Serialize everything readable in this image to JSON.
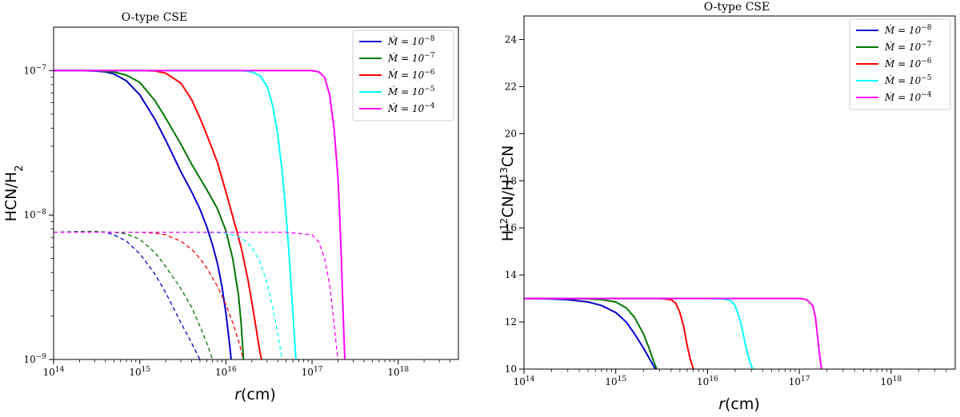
{
  "chart_data": [
    {
      "type": "line",
      "title": "O-type CSE",
      "xlabel": "r(cm)",
      "ylabel": "HCN/H2",
      "xscale": "log",
      "yscale": "log",
      "xlim": [
        100000000000000.0,
        5e+18
      ],
      "ylim": [
        1e-09,
        2e-07
      ],
      "x_ticks": [
        100000000000000.0,
        1000000000000000.0,
        1e+16,
        1e+17,
        1e+18
      ],
      "x_tick_labels": [
        "10^14",
        "10^15",
        "10^16",
        "10^17",
        "10^18"
      ],
      "y_ticks": [
        1e-09,
        1e-08,
        1e-07
      ],
      "y_tick_labels": [
        "10^-9",
        "10^-8",
        "10^-7"
      ],
      "grid": false,
      "legend_position": "top-right",
      "series": [
        {
          "name": "Ṁ = 10^-8",
          "color": "#0000cc",
          "style": "solid",
          "x": [
            100000000000000.0,
            200000000000000.0,
            300000000000000.0,
            400000000000000.0,
            500000000000000.0,
            700000000000000.0,
            1000000000000000.0,
            1500000000000000.0,
            2000000000000000.0,
            3000000000000000.0,
            4000000000000000.0,
            5000000000000000.0,
            6000000000000000.0,
            7000000000000000.0,
            8000000000000000.0,
            9000000000000000.0,
            1e+16,
            1.1e+16,
            1.15e+16
          ],
          "y": [
            1e-07,
            1e-07,
            9.95e-08,
            9.8e-08,
            9.5e-08,
            8.5e-08,
            6.8e-08,
            4.6e-08,
            3.3e-08,
            2e-08,
            1.45e-08,
            1.1e-08,
            8.3e-09,
            6.2e-09,
            4.6e-09,
            3.2e-09,
            2.1e-09,
            1.3e-09,
            1e-09
          ]
        },
        {
          "name": "Ṁ = 10^-7",
          "color": "#007700",
          "style": "solid",
          "x": [
            100000000000000.0,
            300000000000000.0,
            500000000000000.0,
            700000000000000.0,
            1000000000000000.0,
            1500000000000000.0,
            2000000000000000.0,
            3000000000000000.0,
            4000000000000000.0,
            6000000000000000.0,
            8000000000000000.0,
            1e+16,
            1.2e+16,
            1.4e+16,
            1.5e+16,
            1.6e+16
          ],
          "y": [
            1e-07,
            1e-07,
            9.8e-08,
            9.3e-08,
            8.3e-08,
            6.2e-08,
            4.7e-08,
            3.1e-08,
            2.25e-08,
            1.5e-08,
            1.1e-08,
            7.8e-09,
            5e-09,
            2.8e-09,
            1.8e-09,
            1e-09
          ]
        },
        {
          "name": "Ṁ = 10^-6",
          "color": "#ff0000",
          "style": "solid",
          "x": [
            100000000000000.0,
            500000000000000.0,
            1000000000000000.0,
            1500000000000000.0,
            2000000000000000.0,
            3000000000000000.0,
            4000000000000000.0,
            5000000000000000.0,
            6000000000000000.0,
            8000000000000000.0,
            1e+16,
            1.2e+16,
            1.5e+16,
            1.8e+16,
            2e+16,
            2.3e+16,
            2.5e+16,
            2.6e+16
          ],
          "y": [
            1e-07,
            1e-07,
            1e-07,
            9.95e-08,
            9.6e-08,
            8.2e-08,
            6.3e-08,
            4.7e-08,
            3.6e-08,
            2.3e-08,
            1.45e-08,
            9.8e-09,
            6e-09,
            3.6e-09,
            2.5e-09,
            1.5e-09,
            1.1e-09,
            1e-09
          ]
        },
        {
          "name": "Ṁ = 10^-5",
          "color": "#00ffff",
          "style": "solid",
          "x": [
            100000000000000.0,
            1000000000000000.0,
            5000000000000000.0,
            1e+16,
            1.5e+16,
            2e+16,
            2.5e+16,
            3e+16,
            3.5e+16,
            4e+16,
            4.5e+16,
            5e+16,
            5.5e+16,
            6e+16,
            6.5e+16
          ],
          "y": [
            1e-07,
            1e-07,
            1e-07,
            1e-07,
            1e-07,
            9.8e-08,
            9.2e-08,
            7.8e-08,
            5.7e-08,
            3.6e-08,
            2e-08,
            1e-08,
            4.7e-09,
            2.1e-09,
            1e-09
          ]
        },
        {
          "name": "Ṁ = 10^-4",
          "color": "#ff00ff",
          "style": "solid",
          "x": [
            100000000000000.0,
            1000000000000000.0,
            1e+16,
            5e+16,
            1e+17,
            1.2e+17,
            1.4e+17,
            1.6e+17,
            1.8e+17,
            2e+17,
            2.1e+17,
            2.2e+17,
            2.3e+17,
            2.4e+17
          ],
          "y": [
            1e-07,
            1e-07,
            1e-07,
            1e-07,
            1e-07,
            9.8e-08,
            9e-08,
            6.8e-08,
            4e-08,
            1.8e-08,
            9.5e-09,
            4.6e-09,
            2e-09,
            1e-09
          ]
        },
        {
          "color": "#0000cc",
          "style": "dashed",
          "x": [
            100000000000000.0,
            200000000000000.0,
            300000000000000.0,
            400000000000000.0,
            500000000000000.0,
            700000000000000.0,
            1000000000000000.0,
            1500000000000000.0,
            2000000000000000.0,
            3000000000000000.0,
            4000000000000000.0,
            5000000000000000.0
          ],
          "y": [
            7.6e-09,
            7.7e-09,
            7.7e-09,
            7.6e-09,
            7.3e-09,
            6.6e-09,
            5.4e-09,
            3.9e-09,
            2.9e-09,
            1.8e-09,
            1.3e-09,
            1e-09
          ]
        },
        {
          "color": "#007700",
          "style": "dashed",
          "x": [
            100000000000000.0,
            300000000000000.0,
            500000000000000.0,
            700000000000000.0,
            1000000000000000.0,
            1500000000000000.0,
            2000000000000000.0,
            3000000000000000.0,
            4000000000000000.0,
            5000000000000000.0,
            6000000000000000.0,
            7000000000000000.0
          ],
          "y": [
            7.6e-09,
            7.7e-09,
            7.6e-09,
            7.4e-09,
            6.8e-09,
            5.5e-09,
            4.4e-09,
            3.1e-09,
            2.3e-09,
            1.7e-09,
            1.3e-09,
            1e-09
          ]
        },
        {
          "color": "#ff0000",
          "style": "dashed",
          "x": [
            100000000000000.0,
            500000000000000.0,
            1000000000000000.0,
            1500000000000000.0,
            2000000000000000.0,
            3000000000000000.0,
            4000000000000000.0,
            5000000000000000.0,
            6000000000000000.0,
            8000000000000000.0,
            1e+16,
            1.2e+16,
            1.4e+16,
            1.6e+16
          ],
          "y": [
            7.6e-09,
            7.6e-09,
            7.6e-09,
            7.5e-09,
            7.3e-09,
            6.6e-09,
            5.8e-09,
            5e-09,
            4.3e-09,
            3.2e-09,
            2.4e-09,
            1.8e-09,
            1.35e-09,
            1e-09
          ]
        },
        {
          "color": "#00ffff",
          "style": "dashed",
          "x": [
            100000000000000.0,
            1000000000000000.0,
            5000000000000000.0,
            1e+16,
            1.5e+16,
            2e+16,
            2.5e+16,
            3e+16,
            3.5e+16,
            4e+16,
            4.5e+16
          ],
          "y": [
            7.6e-09,
            7.6e-09,
            7.6e-09,
            7.5e-09,
            7e-09,
            6e-09,
            4.7e-09,
            3.4e-09,
            2.3e-09,
            1.5e-09,
            1e-09
          ]
        },
        {
          "color": "#ff00ff",
          "style": "dashed",
          "x": [
            100000000000000.0,
            1000000000000000.0,
            1e+16,
            5e+16,
            1e+17,
            1.2e+17,
            1.4e+17,
            1.6e+17,
            1.8e+17,
            1.9e+17,
            2e+17
          ],
          "y": [
            7.6e-09,
            7.6e-09,
            7.6e-09,
            7.6e-09,
            7.3e-09,
            6.5e-09,
            5e-09,
            3.3e-09,
            1.8e-09,
            1.3e-09,
            1e-09
          ]
        }
      ]
    },
    {
      "type": "line",
      "title": "O-type CSE",
      "xlabel": "r(cm)",
      "ylabel": "H12CN/H13CN",
      "xscale": "log",
      "yscale": "linear",
      "xlim": [
        100000000000000.0,
        5e+18
      ],
      "ylim": [
        10,
        25
      ],
      "x_ticks": [
        100000000000000.0,
        1000000000000000.0,
        1e+16,
        1e+17,
        1e+18
      ],
      "x_tick_labels": [
        "10^14",
        "10^15",
        "10^16",
        "10^17",
        "10^18"
      ],
      "y_ticks": [
        10,
        12,
        14,
        16,
        18,
        20,
        22,
        24
      ],
      "y_tick_labels": [
        "10",
        "12",
        "14",
        "16",
        "18",
        "20",
        "22",
        "24"
      ],
      "grid": false,
      "legend_position": "top-right",
      "series": [
        {
          "name": "Ṁ = 10^-8",
          "color": "#0000cc",
          "style": "solid",
          "x": [
            100000000000000.0,
            200000000000000.0,
            300000000000000.0,
            500000000000000.0,
            700000000000000.0,
            1000000000000000.0,
            1300000000000000.0,
            1600000000000000.0,
            2000000000000000.0,
            2400000000000000.0,
            2700000000000000.0
          ],
          "y": [
            13,
            12.98,
            12.95,
            12.85,
            12.7,
            12.4,
            12.0,
            11.5,
            10.9,
            10.35,
            10
          ]
        },
        {
          "name": "Ṁ = 10^-7",
          "color": "#007700",
          "style": "solid",
          "x": [
            100000000000000.0,
            300000000000000.0,
            500000000000000.0,
            700000000000000.0,
            1000000000000000.0,
            1300000000000000.0,
            1600000000000000.0,
            2000000000000000.0,
            2300000000000000.0,
            2600000000000000.0,
            2800000000000000.0
          ],
          "y": [
            13,
            13,
            12.98,
            12.95,
            12.85,
            12.6,
            12.2,
            11.5,
            10.9,
            10.3,
            10
          ]
        },
        {
          "name": "Ṁ = 10^-6",
          "color": "#ff0000",
          "style": "solid",
          "x": [
            100000000000000.0,
            1000000000000000.0,
            3000000000000000.0,
            4000000000000000.0,
            4500000000000000.0,
            5000000000000000.0,
            5500000000000000.0,
            6000000000000000.0,
            6500000000000000.0,
            7000000000000000.0
          ],
          "y": [
            13,
            13,
            13,
            12.95,
            12.8,
            12.4,
            11.8,
            11.0,
            10.4,
            10
          ]
        },
        {
          "name": "Ṁ = 10^-5",
          "color": "#00ffff",
          "style": "solid",
          "x": [
            100000000000000.0,
            1000000000000000.0,
            1e+16,
            1.5e+16,
            1.8e+16,
            2e+16,
            2.3e+16,
            2.6e+16,
            2.9e+16,
            3.1e+16
          ],
          "y": [
            13,
            13,
            13,
            12.98,
            12.9,
            12.7,
            12.0,
            11.0,
            10.3,
            10
          ]
        },
        {
          "name": "Ṁ = 10^-4",
          "color": "#ff00ff",
          "style": "solid",
          "x": [
            100000000000000.0,
            1000000000000000.0,
            1e+16,
            1e+17,
            1.2e+17,
            1.4e+17,
            1.5e+17,
            1.6e+17,
            1.7e+17,
            1.75e+17
          ],
          "y": [
            13,
            13,
            13,
            13,
            12.95,
            12.7,
            12.2,
            11.2,
            10.3,
            10
          ]
        }
      ]
    }
  ]
}
